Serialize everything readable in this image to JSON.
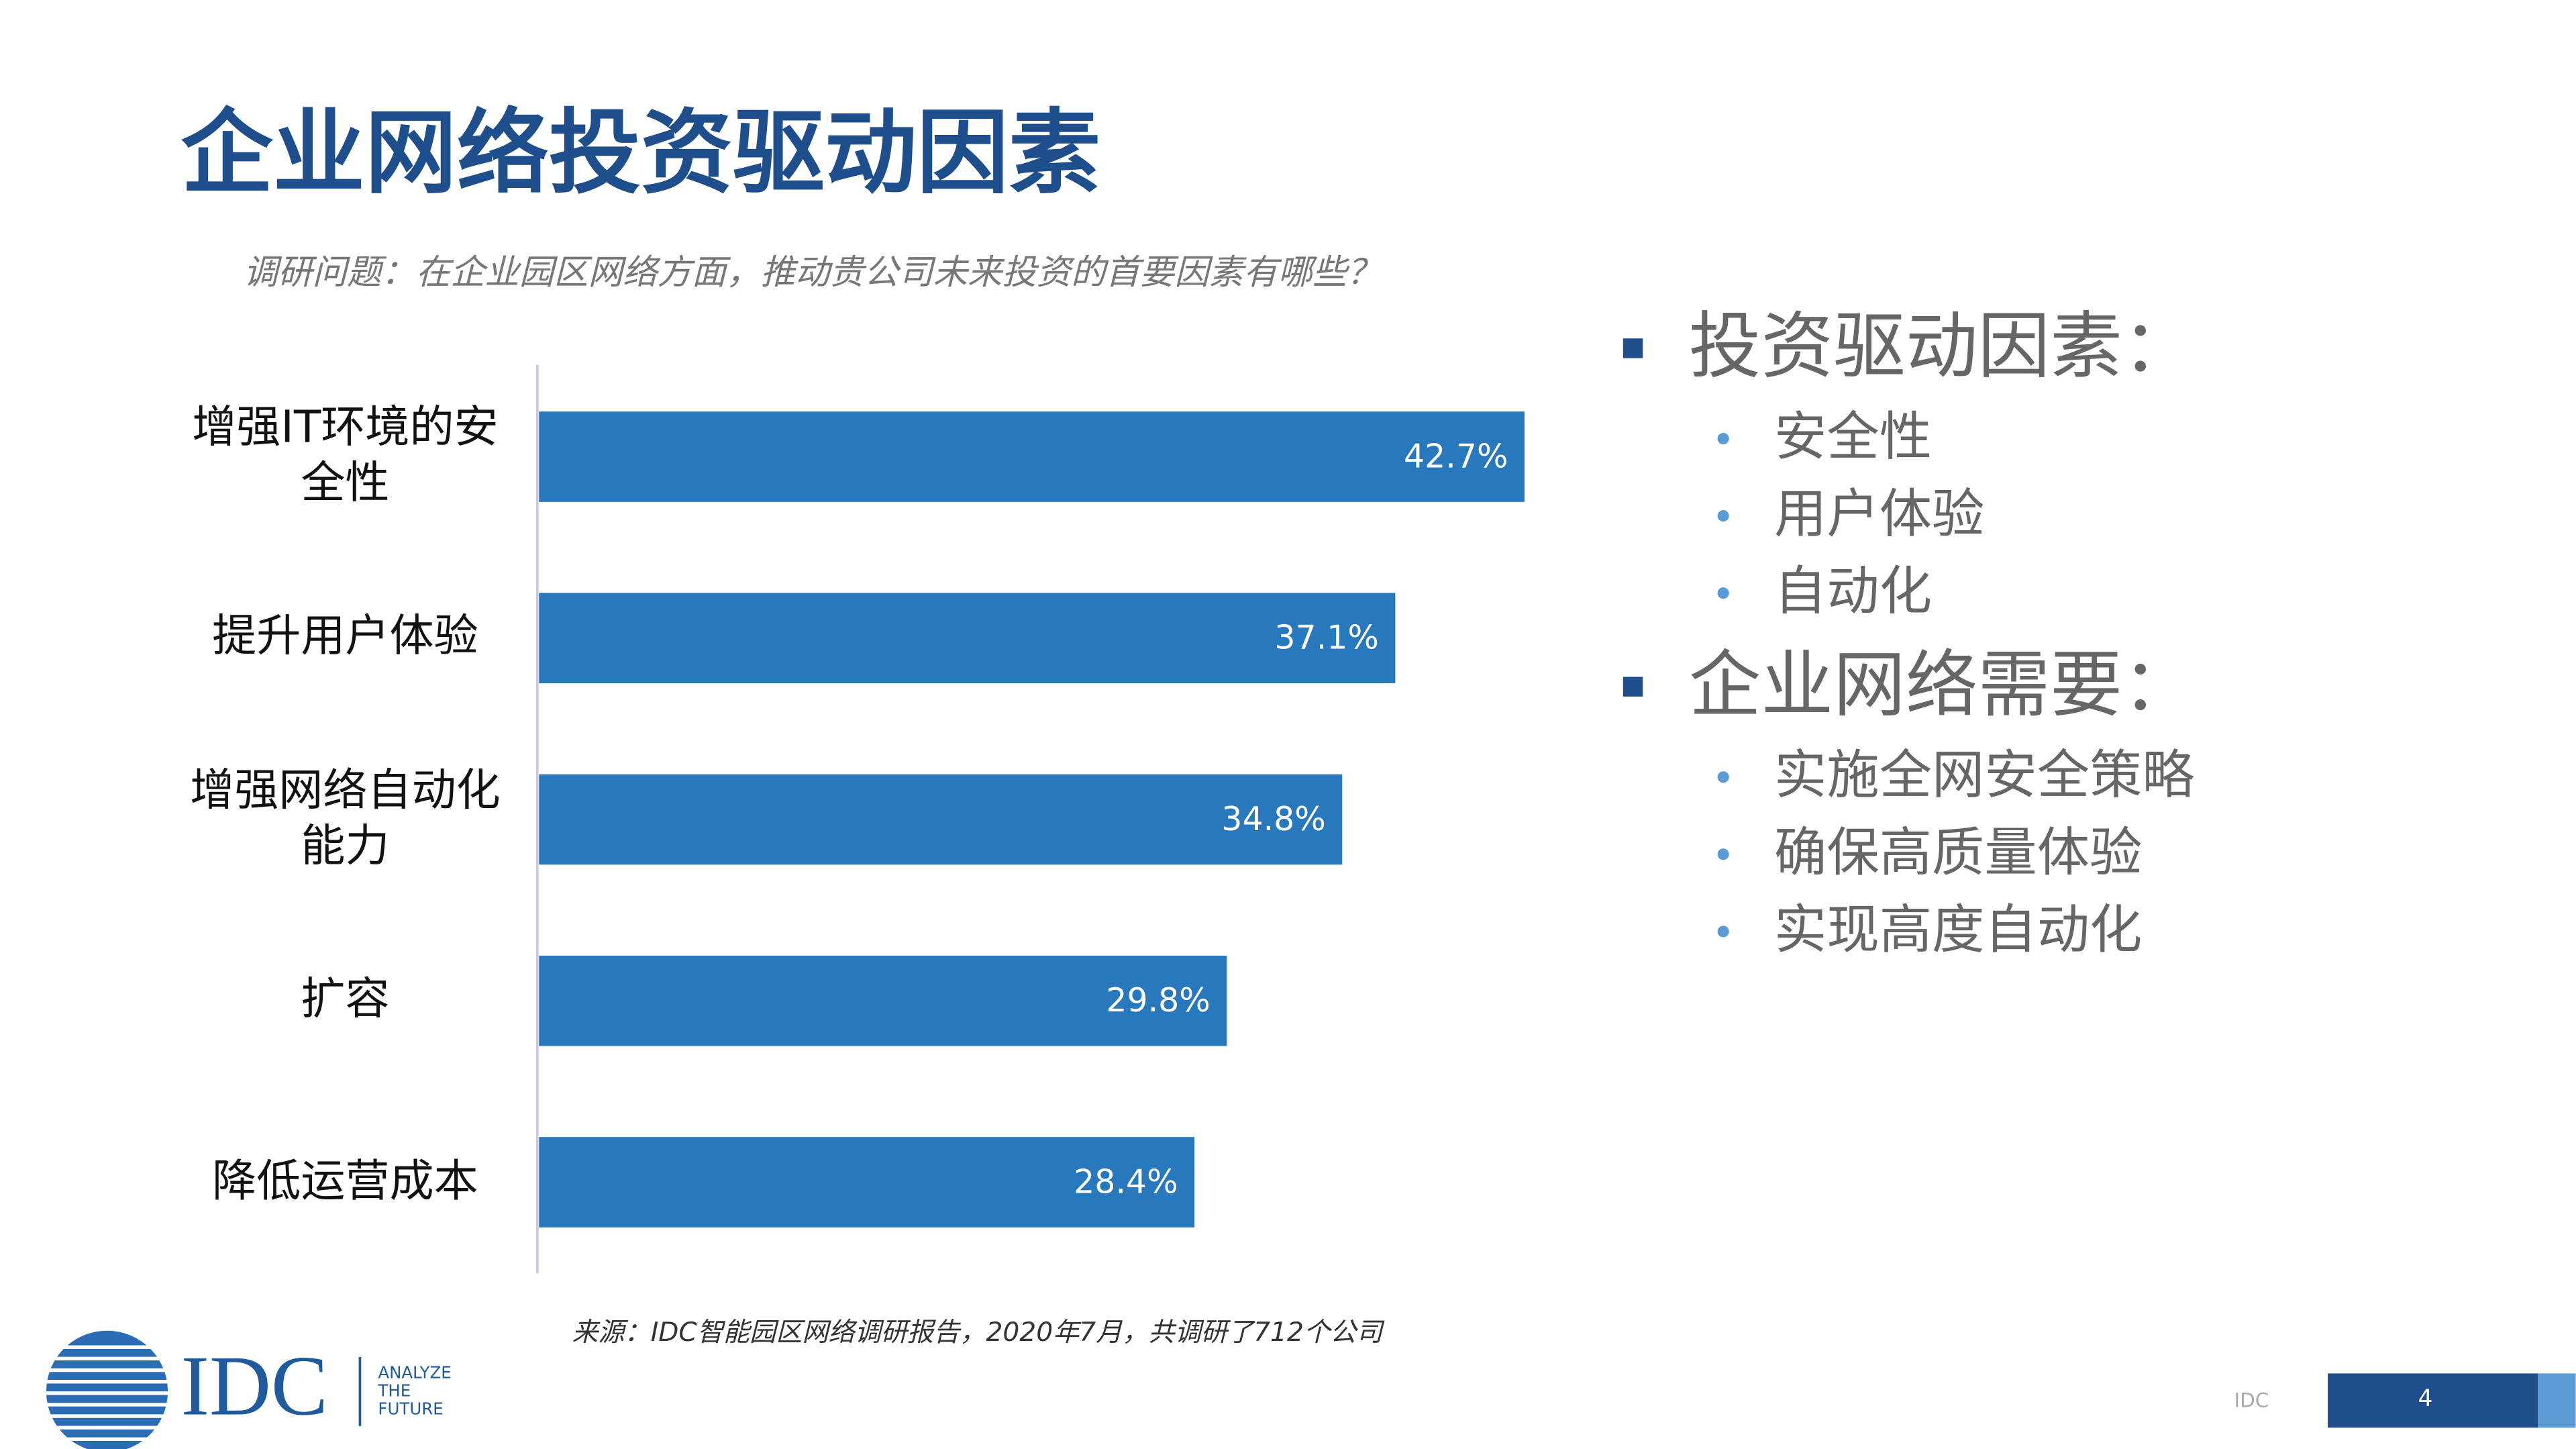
{
  "title": "企业网络投资驱动因素",
  "question": "调研问题：在企业园区网络方面，推动贵公司未来投资的首要因素有哪些？",
  "chart_data": {
    "type": "bar",
    "orientation": "horizontal",
    "categories": [
      "增强IT环境的安全性",
      "提升用户体验",
      "增强网络自动化能力",
      "扩容",
      "降低运营成本"
    ],
    "values": [
      42.7,
      37.1,
      34.8,
      29.8,
      28.4
    ],
    "value_labels": [
      "42.7%",
      "37.1%",
      "34.8%",
      "29.8%",
      "28.4%"
    ],
    "color": "#2878bd"
  },
  "summary": [
    {
      "heading": "投资驱动因素：",
      "items": [
        "安全性",
        "用户体验",
        "自动化"
      ]
    },
    {
      "heading": "企业网络需要：",
      "items": [
        "实施全网安全策略",
        "确保高质量体验",
        "实现高度自动化"
      ]
    }
  ],
  "source": "来源：IDC智能园区网络调研报告，2020年7月，共调研了712个公司",
  "logo": {
    "name": "IDC",
    "tagline": [
      "ANALYZE",
      "THE",
      "FUTURE"
    ]
  },
  "footer": {
    "label": "IDC",
    "page": 4
  }
}
